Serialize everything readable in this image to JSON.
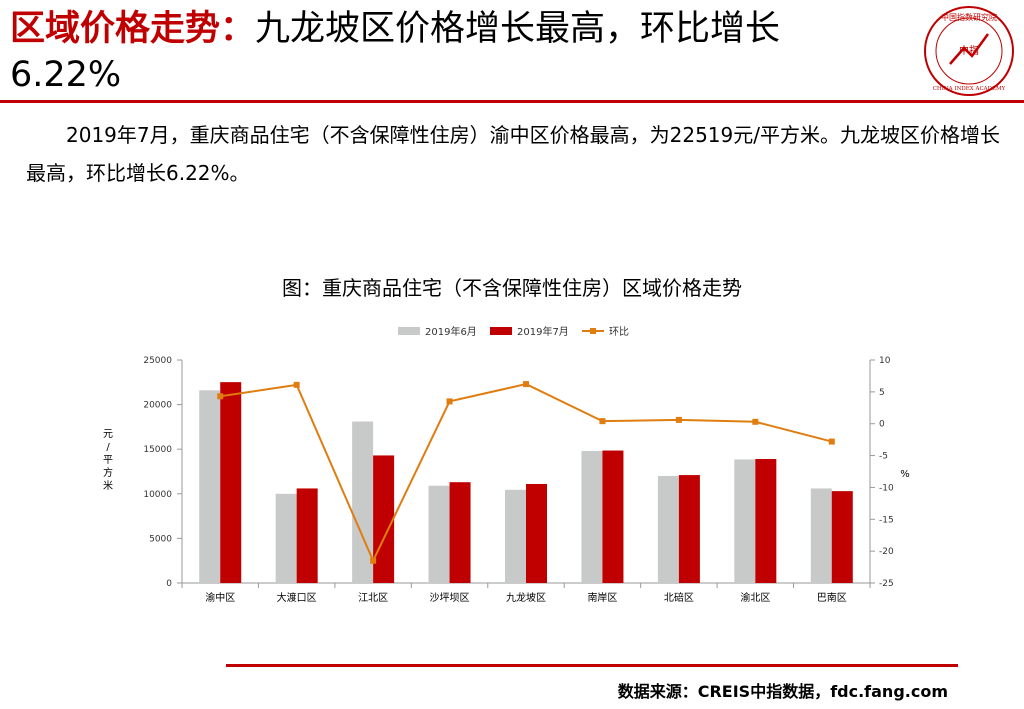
{
  "slide": {
    "title_prefix": "区域价格走势：",
    "title_rest": "九龙坡区价格增长最高，环比增长6.22%",
    "summary": "2019年7月，重庆商品住宅（不含保障性住房）渝中区价格最高，为22519元/平方米。九龙坡区价格增长最高，环比增长6.22%。",
    "chart_caption": "图：重庆商品住宅（不含保障性住房）区域价格走势",
    "source": "数据来源：CREIS中指数据，fdc.fang.com",
    "logo": {
      "top_text": "中国指数研究院",
      "center_text": "中指",
      "bottom_text": "CHINA INDEX ACADEMY"
    }
  },
  "colors": {
    "accent": "#c00000",
    "bar_june": "#c8c9c9",
    "bar_july": "#c00000",
    "line": "#e07d10"
  },
  "chart_data": {
    "type": "bar",
    "categories": [
      "渝中区",
      "大渡口区",
      "江北区",
      "沙坪坝区",
      "九龙坡区",
      "南岸区",
      "北碚区",
      "渝北区",
      "巴南区"
    ],
    "series": [
      {
        "name": "2019年6月",
        "type": "bar",
        "axis": "left",
        "values": [
          21600,
          10000,
          18100,
          10900,
          10450,
          14800,
          12000,
          13850,
          10600
        ]
      },
      {
        "name": "2019年7月",
        "type": "bar",
        "axis": "left",
        "values": [
          22519,
          10600,
          14300,
          11300,
          11100,
          14850,
          12100,
          13900,
          10300
        ]
      },
      {
        "name": "环比",
        "type": "line",
        "axis": "right",
        "values": [
          4.3,
          6.1,
          -21.5,
          3.5,
          6.22,
          0.4,
          0.6,
          0.3,
          -2.8
        ]
      }
    ],
    "ylabel": "元/平方米",
    "y2label": "%",
    "ylim": [
      0,
      25000
    ],
    "yticks": [
      0,
      5000,
      10000,
      15000,
      20000,
      25000
    ],
    "y2lim": [
      -25,
      10
    ],
    "y2ticks": [
      10,
      5,
      0,
      -5,
      -10,
      -15,
      -20,
      -25
    ],
    "legend": "top",
    "grid": false
  }
}
